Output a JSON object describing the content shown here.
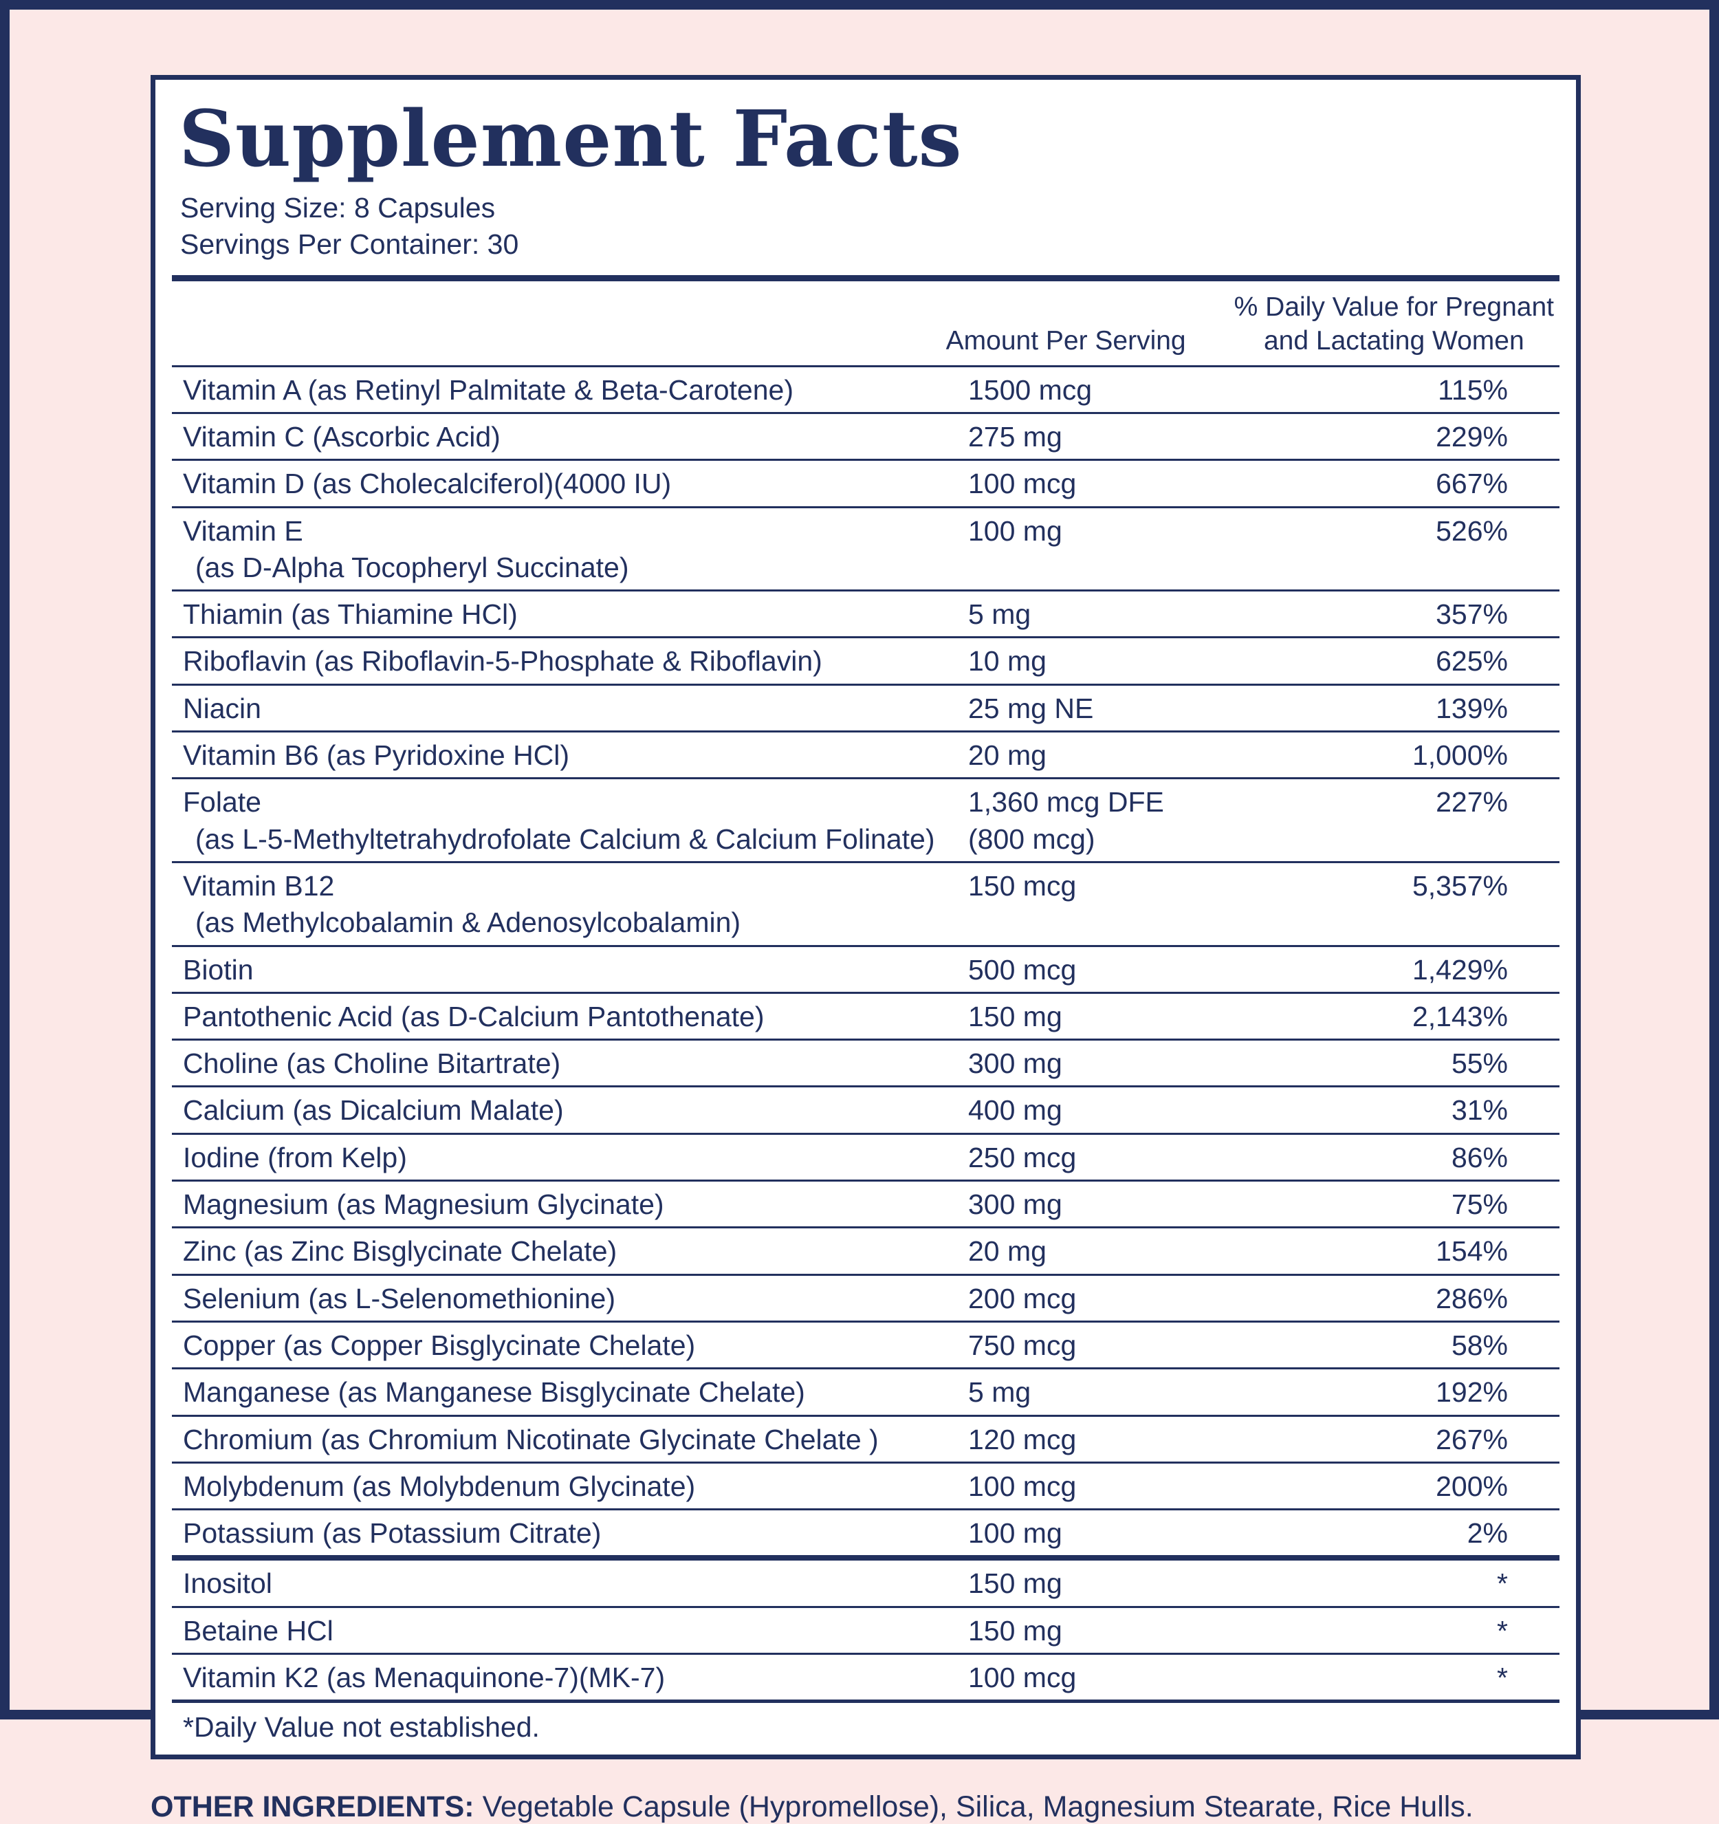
{
  "colors": {
    "navy": "#22305e",
    "pink": "#fce8e7",
    "panel": "#ffffff"
  },
  "label": {
    "title": "Supplement Facts",
    "serving_size": "Serving Size: 8 Capsules",
    "servings_per_container": "Servings Per Container: 30",
    "footnote": "*Daily Value not established.",
    "other_ingredients_label": "OTHER INGREDIENTS:",
    "other_ingredients_text": "Vegetable Capsule (Hypromellose), Silica, Magnesium Stearate, Rice Hulls."
  },
  "table": {
    "header": {
      "amount": "Amount Per Serving",
      "dv_line1": "% Daily Value for Pregnant",
      "dv_line2": "and Lactating Women"
    },
    "rows": [
      {
        "name": "Vitamin A (as Retinyl Palmitate & Beta-Carotene)",
        "amount": "1500 mcg",
        "dv": "115%"
      },
      {
        "name": "Vitamin C (Ascorbic Acid)",
        "amount": "275 mg",
        "dv": "229%"
      },
      {
        "name": "Vitamin D (as Cholecalciferol)(4000 IU)",
        "amount": "100 mcg",
        "dv": "667%"
      },
      {
        "name": "Vitamin E",
        "name2": "(as D-Alpha Tocopheryl Succinate)",
        "amount": "100 mg",
        "dv": "526%"
      },
      {
        "name": "Thiamin (as Thiamine HCl)",
        "amount": "5 mg",
        "dv": "357%"
      },
      {
        "name": "Riboflavin (as Riboflavin-5-Phosphate & Riboflavin)",
        "amount": "10 mg",
        "dv": "625%"
      },
      {
        "name": "Niacin",
        "amount": "25 mg NE",
        "dv": "139%"
      },
      {
        "name": "Vitamin B6 (as Pyridoxine HCl)",
        "amount": "20 mg",
        "dv": "1,000%"
      },
      {
        "name": "Folate",
        "name2": "(as L-5-Methyltetrahydrofolate Calcium & Calcium Folinate)",
        "amount": "1,360 mcg DFE",
        "amount2": "(800 mcg)",
        "dv": "227%"
      },
      {
        "name": "Vitamin B12",
        "name2": "(as Methylcobalamin & Adenosylcobalamin)",
        "amount": "150 mcg",
        "dv": "5,357%"
      },
      {
        "name": "Biotin",
        "amount": "500 mcg",
        "dv": "1,429%"
      },
      {
        "name": "Pantothenic Acid (as D-Calcium Pantothenate)",
        "amount": "150 mg",
        "dv": "2,143%"
      },
      {
        "name": "Choline (as Choline Bitartrate)",
        "amount": "300 mg",
        "dv": "55%"
      },
      {
        "name": "Calcium (as Dicalcium Malate)",
        "amount": "400 mg",
        "dv": "31%"
      },
      {
        "name": "Iodine (from Kelp)",
        "amount": "250 mcg",
        "dv": "86%"
      },
      {
        "name": "Magnesium (as Magnesium Glycinate)",
        "amount": "300 mg",
        "dv": "75%"
      },
      {
        "name": "Zinc (as Zinc Bisglycinate Chelate)",
        "amount": "20 mg",
        "dv": "154%"
      },
      {
        "name": "Selenium (as L-Selenomethionine)",
        "amount": "200 mcg",
        "dv": "286%"
      },
      {
        "name": "Copper (as Copper Bisglycinate Chelate)",
        "amount": "750 mcg",
        "dv": "58%"
      },
      {
        "name": "Manganese (as Manganese Bisglycinate Chelate)",
        "amount": "5 mg",
        "dv": "192%"
      },
      {
        "name": "Chromium (as Chromium Nicotinate Glycinate Chelate )",
        "amount": "120 mcg",
        "dv": "267%"
      },
      {
        "name": "Molybdenum (as Molybdenum Glycinate)",
        "amount": "100 mcg",
        "dv": "200%"
      },
      {
        "name": "Potassium (as Potassium Citrate)",
        "amount": "100 mg",
        "dv": "2%"
      }
    ],
    "extra_rows": [
      {
        "name": "Inositol",
        "amount": "150 mg",
        "dv": "*"
      },
      {
        "name": "Betaine HCl",
        "amount": "150 mg",
        "dv": "*"
      },
      {
        "name": "Vitamin K2 (as Menaquinone-7)(MK-7)",
        "amount": "100 mcg",
        "dv": "*"
      }
    ]
  }
}
